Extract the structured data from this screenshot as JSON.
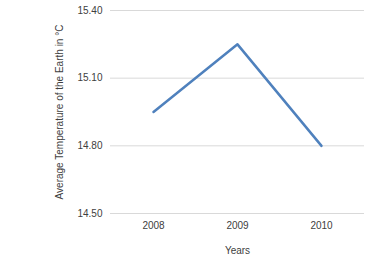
{
  "chart_data": {
    "type": "line",
    "x_label": "Years",
    "y_label": "Average Temperature of the Earth in °C",
    "categories": [
      "2008",
      "2009",
      "2010"
    ],
    "values": [
      14.95,
      15.25,
      14.8
    ],
    "color": "#4f81bd",
    "ylim": [
      14.5,
      15.4
    ],
    "yticks": [
      {
        "value": 14.5,
        "label": "14.50"
      },
      {
        "value": 14.8,
        "label": "14.80"
      },
      {
        "value": 15.1,
        "label": "15.10"
      },
      {
        "value": 15.4,
        "label": "15.40"
      }
    ],
    "grid": true
  }
}
